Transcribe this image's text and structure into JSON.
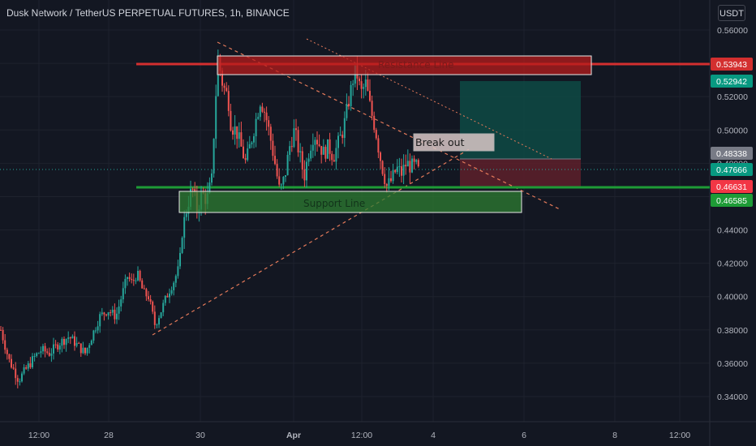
{
  "header": {
    "title": "Dusk Network / TetherUS PERPETUAL FUTURES, 1h, BINANCE",
    "currency": "USDT"
  },
  "colors": {
    "background": "#131722",
    "up": "#26a69a",
    "down": "#ef5350",
    "resistance": "#d32f2f",
    "support": "#1e9b36",
    "trend": "#e57a5a",
    "grid": "#1e222d"
  },
  "chart_data": {
    "type": "candlestick",
    "title": "Dusk Network / TetherUS PERPETUAL FUTURES, 1h, BINANCE",
    "ylim": [
      0.325,
      0.565
    ],
    "y_ticks": [
      "0.56000",
      "0.54000",
      "0.52000",
      "0.50000",
      "0.48000",
      "0.46000",
      "0.44000",
      "0.42000",
      "0.40000",
      "0.38000",
      "0.36000",
      "0.34000"
    ],
    "x_ticks": [
      "12:00",
      "28",
      "30",
      "Apr",
      "12:00",
      "4",
      "6",
      "8",
      "12:00"
    ],
    "price_labels": [
      {
        "value": "0.53943",
        "color": "#d32f2f"
      },
      {
        "value": "0.52942",
        "color": "#089981"
      },
      {
        "value": "0.48338",
        "color": "#787b86"
      },
      {
        "value": "0.47666",
        "color": "#089981"
      },
      {
        "value": "0.46631",
        "color": "#f23645"
      },
      {
        "value": "0.46585",
        "color": "#1e9b36"
      }
    ],
    "annotations": {
      "resistance_label": "Resistance Line",
      "support_label": "Support Line",
      "breakout_label": "Break out"
    },
    "series": [
      {
        "path": [
          [
            0,
            0.38
          ],
          [
            10,
            0.362
          ],
          [
            22,
            0.35
          ],
          [
            32,
            0.357
          ],
          [
            42,
            0.364
          ],
          [
            50,
            0.368
          ],
          [
            60,
            0.366
          ],
          [
            72,
            0.372
          ],
          [
            84,
            0.376
          ],
          [
            96,
            0.37
          ],
          [
            104,
            0.366
          ],
          [
            112,
            0.376
          ],
          [
            122,
            0.388
          ],
          [
            132,
            0.392
          ],
          [
            142,
            0.388
          ],
          [
            150,
            0.402
          ],
          [
            156,
            0.412
          ],
          [
            162,
            0.408
          ],
          [
            168,
            0.414
          ],
          [
            176,
            0.402
          ],
          [
            182,
            0.4
          ],
          [
            190,
            0.383
          ],
          [
            198,
            0.392
          ],
          [
            206,
            0.402
          ],
          [
            214,
            0.41
          ],
          [
            220,
            0.418
          ],
          [
            224,
            0.44
          ],
          [
            230,
            0.455
          ],
          [
            236,
            0.465
          ],
          [
            242,
            0.452
          ],
          [
            248,
            0.462
          ],
          [
            254,
            0.458
          ],
          [
            260,
            0.47
          ],
          [
            264,
            0.512
          ],
          [
            268,
            0.545
          ],
          [
            272,
            0.53
          ],
          [
            276,
            0.524
          ],
          [
            280,
            0.52
          ],
          [
            284,
            0.502
          ],
          [
            290,
            0.5
          ],
          [
            296,
            0.49
          ],
          [
            302,
            0.48
          ],
          [
            308,
            0.492
          ],
          [
            314,
            0.505
          ],
          [
            320,
            0.518
          ],
          [
            326,
            0.51
          ],
          [
            332,
            0.496
          ],
          [
            338,
            0.48
          ],
          [
            344,
            0.462
          ],
          [
            350,
            0.472
          ],
          [
            356,
            0.49
          ],
          [
            362,
            0.5
          ],
          [
            368,
            0.486
          ],
          [
            374,
            0.472
          ],
          [
            380,
            0.488
          ],
          [
            386,
            0.498
          ],
          [
            392,
            0.492
          ],
          [
            398,
            0.486
          ],
          [
            404,
            0.49
          ],
          [
            410,
            0.484
          ],
          [
            416,
            0.492
          ],
          [
            422,
            0.5
          ],
          [
            428,
            0.515
          ],
          [
            434,
            0.53
          ],
          [
            438,
            0.536
          ],
          [
            444,
            0.522
          ],
          [
            450,
            0.528
          ],
          [
            456,
            0.512
          ],
          [
            462,
            0.5
          ],
          [
            466,
            0.488
          ],
          [
            470,
            0.478
          ],
          [
            476,
            0.466
          ],
          [
            482,
            0.47
          ],
          [
            488,
            0.477
          ],
          [
            494,
            0.474
          ],
          [
            500,
            0.48
          ],
          [
            506,
            0.478
          ],
          [
            512,
            0.478
          ],
          [
            516,
            0.474
          ]
        ]
      }
    ]
  }
}
